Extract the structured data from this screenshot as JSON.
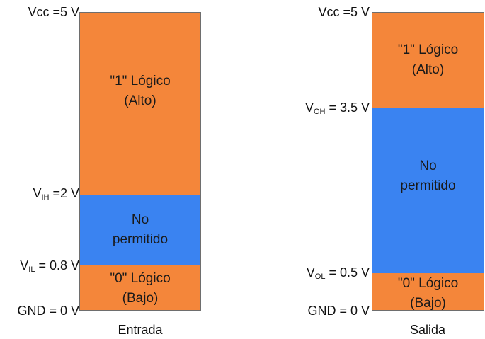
{
  "colors": {
    "logic": "#f4863a",
    "forbidden": "#3a83f1"
  },
  "input": {
    "caption": "Entrada",
    "levels": {
      "vcc": "Vcc =5 V",
      "vih_prefix": "V",
      "vih_sub": "IH",
      "vih_value": " =2 V",
      "vil_prefix": "V",
      "vil_sub": "IL",
      "vil_value": " = 0.8 V",
      "gnd": "GND = 0 V"
    },
    "high": {
      "line1": "\"1\" Lógico",
      "line2": "(Alto)"
    },
    "forbidden": {
      "line1": "No",
      "line2": "permitido"
    },
    "low": {
      "line1": "\"0\" Lógico",
      "line2": "(Bajo)"
    }
  },
  "output": {
    "caption": "Salida",
    "levels": {
      "vcc": "Vcc =5 V",
      "voh_prefix": "V",
      "voh_sub": "OH",
      "voh_value": " = 3.5 V",
      "vol_prefix": "V",
      "vol_sub": "OL",
      "vol_value": " = 0.5 V",
      "gnd": "GND = 0 V"
    },
    "high": {
      "line1": "\"1\" Lógico",
      "line2": "(Alto)"
    },
    "forbidden": {
      "line1": "No",
      "line2": "permitido"
    },
    "low": {
      "line1": "\"0\" Lógico",
      "line2": "(Bajo)"
    }
  }
}
